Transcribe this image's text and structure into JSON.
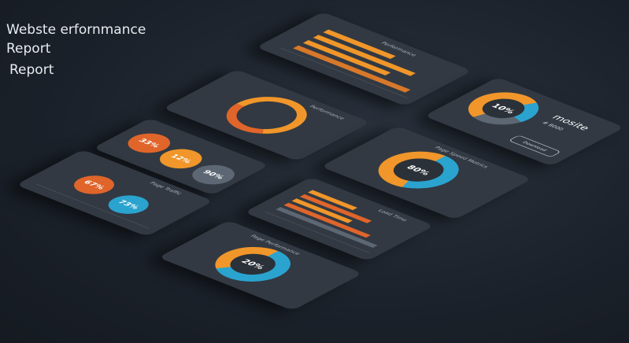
{
  "header": {
    "line1": "Webste erfornmance",
    "line2": "Report",
    "line3": "Report"
  },
  "colors": {
    "orange": "#f0962a",
    "dark_orange": "#e0652a",
    "blue": "#2aa3cf",
    "gray": "#5c6773",
    "panel": "#323942"
  },
  "panels": {
    "bars": {
      "title": "Performance"
    },
    "card": {
      "value": "10%",
      "heading": "mosite",
      "sub": "# 8000",
      "button": "Download"
    },
    "ring": {
      "title": "Performance"
    },
    "donut80": {
      "value": "80%",
      "title": "Page Speed Metrics"
    },
    "bubbles": {
      "values": [
        "33%",
        "12%",
        "90%"
      ]
    },
    "line": {
      "title": "Page Traffic",
      "values": [
        "67%",
        "73%"
      ]
    },
    "orangebars": {
      "title": "Load Time"
    },
    "donut20": {
      "value": "20%",
      "title": "Page Performance"
    }
  }
}
